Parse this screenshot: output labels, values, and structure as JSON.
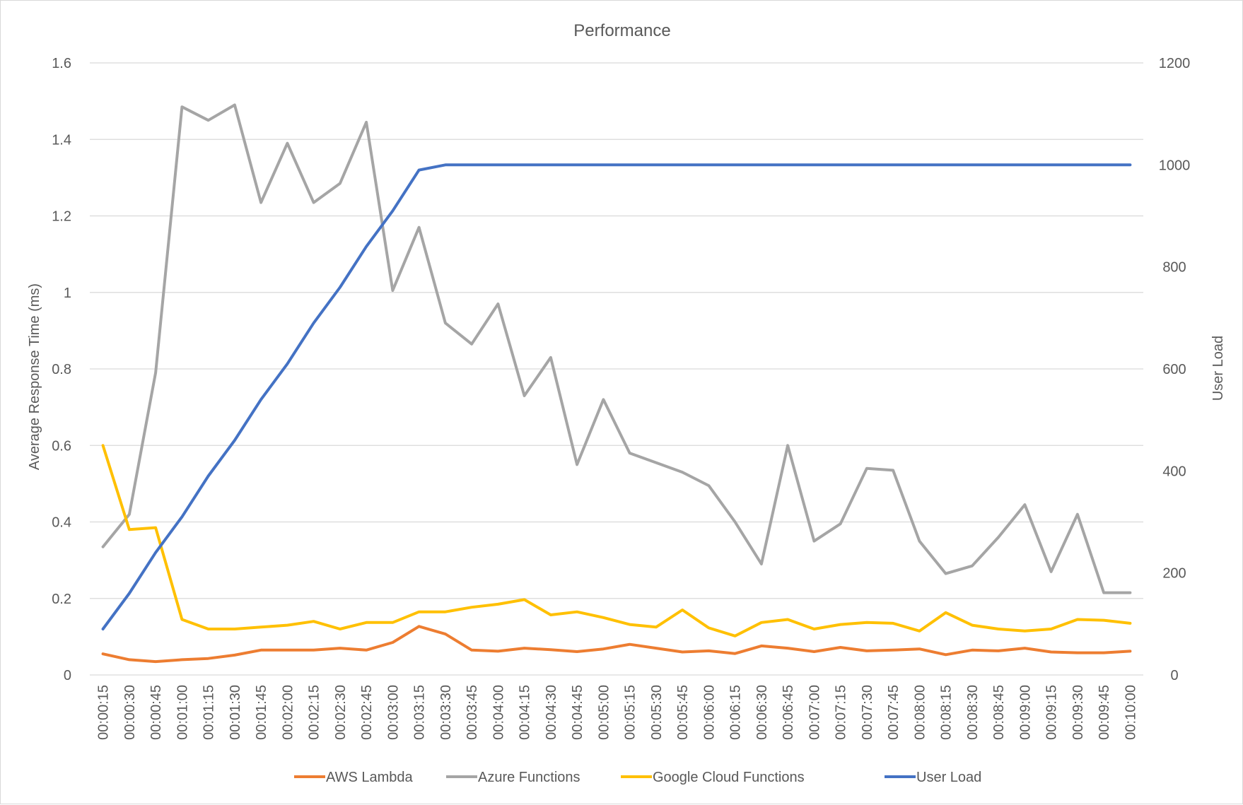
{
  "chart_data": {
    "type": "line",
    "title": "Performance",
    "ylabel": "Average Response Time (ms)",
    "y2label": "User Load",
    "ylim": [
      0,
      1.6
    ],
    "y_ticks": [
      "0",
      "0.2",
      "0.4",
      "0.6",
      "0.8",
      "1",
      "1.2",
      "1.4",
      "1.6"
    ],
    "y2lim": [
      0,
      1200
    ],
    "y2_ticks": [
      "0",
      "200",
      "400",
      "600",
      "800",
      "1000",
      "1200"
    ],
    "grid": true,
    "legend_position": "bottom",
    "categories": [
      "00:00:15",
      "00:00:30",
      "00:00:45",
      "00:01:00",
      "00:01:15",
      "00:01:30",
      "00:01:45",
      "00:02:00",
      "00:02:15",
      "00:02:30",
      "00:02:45",
      "00:03:00",
      "00:03:15",
      "00:03:30",
      "00:03:45",
      "00:04:00",
      "00:04:15",
      "00:04:30",
      "00:04:45",
      "00:05:00",
      "00:05:15",
      "00:05:30",
      "00:05:45",
      "00:06:00",
      "00:06:15",
      "00:06:30",
      "00:06:45",
      "00:07:00",
      "00:07:15",
      "00:07:30",
      "00:07:45",
      "00:08:00",
      "00:08:15",
      "00:08:30",
      "00:08:45",
      "00:09:00",
      "00:09:15",
      "00:09:30",
      "00:09:45",
      "00:10:00"
    ],
    "series": [
      {
        "name": "AWS Lambda",
        "color": "#ed7d31",
        "axis": "primary",
        "values": [
          0.055,
          0.04,
          0.035,
          0.04,
          0.043,
          0.052,
          0.065,
          0.065,
          0.065,
          0.07,
          0.065,
          0.085,
          0.127,
          0.107,
          0.065,
          0.062,
          0.07,
          0.066,
          0.061,
          0.068,
          0.08,
          0.07,
          0.06,
          0.063,
          0.056,
          0.076,
          0.07,
          0.061,
          0.072,
          0.063,
          0.065,
          0.068,
          0.053,
          0.065,
          0.063,
          0.07,
          0.06,
          0.058,
          0.058,
          0.062
        ]
      },
      {
        "name": "Azure Functions",
        "color": "#a5a5a5",
        "axis": "primary",
        "values": [
          0.335,
          0.42,
          0.79,
          1.485,
          1.45,
          1.49,
          1.235,
          1.39,
          1.235,
          1.285,
          1.445,
          1.005,
          1.17,
          0.92,
          0.865,
          0.97,
          0.73,
          0.83,
          0.55,
          0.72,
          0.58,
          0.555,
          0.53,
          0.495,
          0.4,
          0.29,
          0.6,
          0.35,
          0.395,
          0.54,
          0.535,
          0.35,
          0.265,
          0.285,
          0.36,
          0.445,
          0.27,
          0.42,
          0.215,
          0.215
        ]
      },
      {
        "name": "Google Cloud Functions",
        "color": "#ffc000",
        "axis": "primary",
        "values": [
          0.6,
          0.38,
          0.385,
          0.145,
          0.12,
          0.12,
          0.125,
          0.13,
          0.14,
          0.12,
          0.137,
          0.137,
          0.165,
          0.165,
          0.177,
          0.185,
          0.197,
          0.157,
          0.165,
          0.15,
          0.132,
          0.125,
          0.17,
          0.123,
          0.102,
          0.137,
          0.145,
          0.12,
          0.132,
          0.137,
          0.135,
          0.115,
          0.163,
          0.13,
          0.12,
          0.115,
          0.12,
          0.145,
          0.143,
          0.135
        ]
      },
      {
        "name": "User Load",
        "color": "#4472c4",
        "axis": "secondary",
        "values": [
          90,
          160,
          240,
          310,
          390,
          460,
          540,
          610,
          690,
          760,
          840,
          910,
          990,
          1000,
          1000,
          1000,
          1000,
          1000,
          1000,
          1000,
          1000,
          1000,
          1000,
          1000,
          1000,
          1000,
          1000,
          1000,
          1000,
          1000,
          1000,
          1000,
          1000,
          1000,
          1000,
          1000,
          1000,
          1000,
          1000,
          1000
        ]
      }
    ]
  }
}
